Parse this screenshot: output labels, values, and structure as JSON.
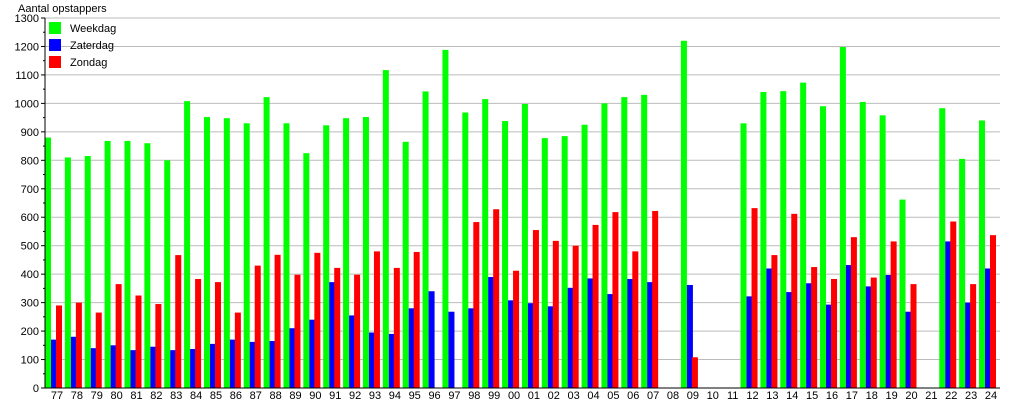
{
  "chart_data": {
    "type": "bar",
    "title": "",
    "ylabel": "Aantal opstappers",
    "xlabel": "",
    "ylim": [
      0,
      1300
    ],
    "yticks": [
      0,
      100,
      200,
      300,
      400,
      500,
      600,
      700,
      800,
      900,
      1000,
      1100,
      1200,
      1300
    ],
    "grid": true,
    "legend_placement": "top-left",
    "categories": [
      "77",
      "78",
      "79",
      "80",
      "81",
      "82",
      "83",
      "84",
      "85",
      "86",
      "87",
      "88",
      "89",
      "90",
      "91",
      "92",
      "93",
      "94",
      "95",
      "96",
      "97",
      "98",
      "99",
      "00",
      "01",
      "02",
      "03",
      "04",
      "05",
      "06",
      "07",
      "08",
      "09",
      "10",
      "11",
      "12",
      "13",
      "14",
      "15",
      "16",
      "17",
      "18",
      "19",
      "20",
      "21",
      "22",
      "23",
      "24"
    ],
    "series": [
      {
        "name": "Weekdag",
        "color": "#00ff00",
        "values": [
          880,
          810,
          815,
          868,
          868,
          860,
          800,
          1008,
          952,
          948,
          930,
          1022,
          930,
          825,
          923,
          948,
          952,
          1117,
          865,
          1042,
          1188,
          968,
          1015,
          938,
          998,
          878,
          885,
          925,
          1000,
          1022,
          1030,
          0,
          1220,
          0,
          0,
          930,
          1040,
          1043,
          1073,
          990,
          1198,
          1005,
          958,
          662,
          0,
          983,
          805,
          940
        ]
      },
      {
        "name": "Zaterdag",
        "color": "#0000ff",
        "values": [
          170,
          180,
          140,
          150,
          133,
          145,
          133,
          137,
          155,
          170,
          162,
          165,
          210,
          240,
          372,
          255,
          195,
          190,
          280,
          340,
          268,
          280,
          390,
          308,
          298,
          287,
          352,
          385,
          330,
          383,
          372,
          0,
          362,
          0,
          0,
          322,
          420,
          337,
          368,
          293,
          432,
          357,
          397,
          268,
          0,
          515,
          300,
          420
        ]
      },
      {
        "name": "Zondag",
        "color": "#ff0000",
        "values": [
          290,
          300,
          265,
          365,
          325,
          295,
          467,
          383,
          372,
          265,
          430,
          468,
          398,
          475,
          422,
          398,
          480,
          422,
          478,
          0,
          0,
          583,
          628,
          412,
          555,
          517,
          500,
          573,
          618,
          480,
          622,
          0,
          108,
          0,
          0,
          632,
          467,
          612,
          425,
          383,
          530,
          388,
          515,
          365,
          0,
          585,
          365,
          537
        ]
      }
    ]
  }
}
